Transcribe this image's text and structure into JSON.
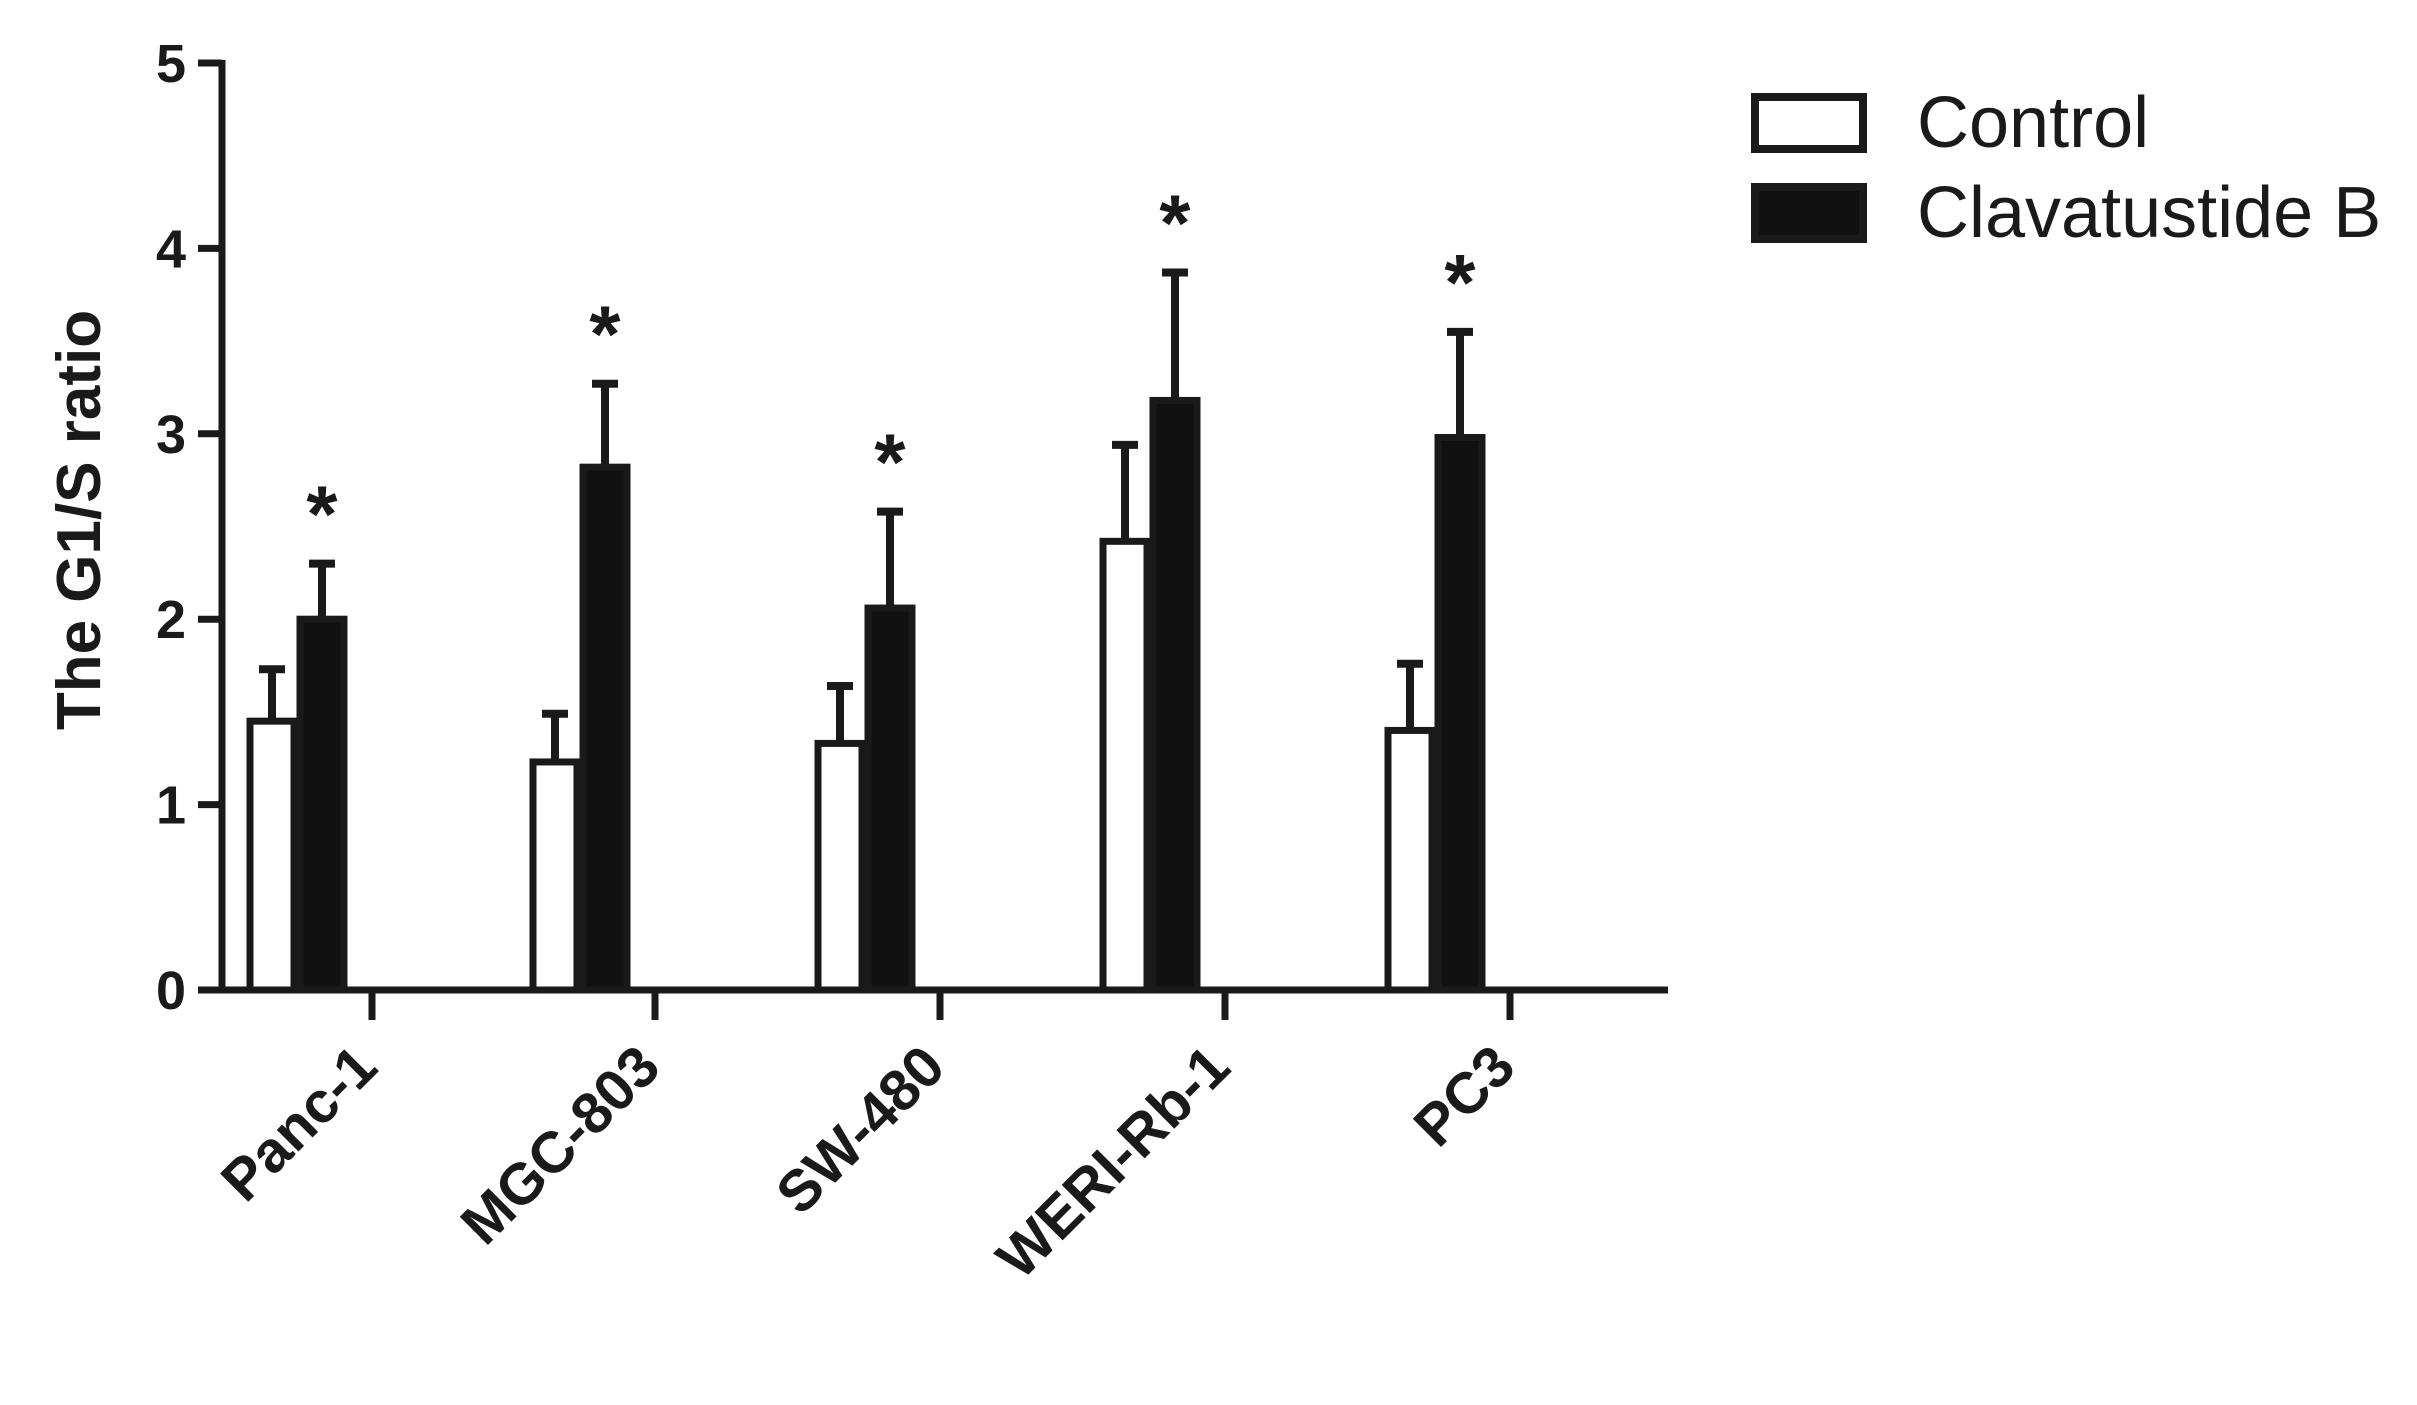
{
  "chart_data": {
    "type": "bar",
    "ylabel": "The G1/S ratio",
    "xlabel": "",
    "ylim": [
      0,
      5
    ],
    "yticks": [
      "0",
      "1",
      "2",
      "3",
      "4",
      "5"
    ],
    "categories": [
      "Panc-1",
      "MGC-803",
      "SW-480",
      "WERI-Rb-1",
      "PC3"
    ],
    "series": [
      {
        "name": "Control",
        "color": "#ffffff",
        "values": [
          1.45,
          1.23,
          1.33,
          2.42,
          1.4
        ],
        "errors": [
          0.28,
          0.26,
          0.31,
          0.52,
          0.36
        ]
      },
      {
        "name": "Clavatustide B",
        "color": "#111111",
        "values": [
          2.0,
          2.82,
          2.06,
          3.18,
          2.98
        ],
        "errors": [
          0.3,
          0.45,
          0.52,
          0.69,
          0.57
        ]
      }
    ],
    "significance": [
      "*",
      "*",
      "*",
      "*",
      "*"
    ],
    "legend_position": "top-right",
    "grid": false
  }
}
